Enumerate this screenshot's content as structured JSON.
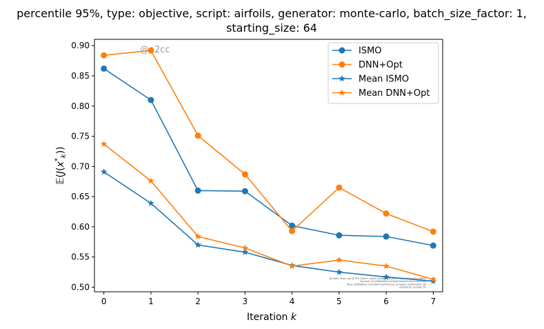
{
  "chart_data": {
    "type": "line",
    "title_line1": "percentile 95%, type: objective, script: airfoils, generator: monte-carlo, batch_size_factor: 1,",
    "title_line2": "starting_size: 64",
    "xlabel": "Iteration k",
    "ylabel": "𝔼(J(x*k))",
    "xlim": [
      -0.2,
      7.2
    ],
    "ylim": [
      0.4925,
      0.9105
    ],
    "xticks": [
      0,
      1,
      2,
      3,
      4,
      5,
      6,
      7
    ],
    "yticks": [
      0.5,
      0.55,
      0.6,
      0.65,
      0.7,
      0.75,
      0.8,
      0.85,
      0.9
    ],
    "watermark": "@a2cc",
    "footnote_lines": [
      "By Kjetil Olsen Lye @ ETH Zurich <kjetil.o.lye@gmail.com> and Siddhartha Mishra",
      "Commit: a2cc0f8d1b8f2c4e3a9d7b6e5f4a3b2c1d0e9f8a",
      "Repo: git@github.com:kjetil-lye/iterative_surrogate_optimization.git",
      "Hostname: ex-login-05"
    ],
    "legend_position": "top-right",
    "series": [
      {
        "name": "ISMO",
        "marker": "circle",
        "color": "#1f77b4",
        "x": [
          0,
          1,
          2,
          3,
          4,
          5,
          6,
          7
        ],
        "values": [
          0.862,
          0.81,
          0.66,
          0.659,
          0.602,
          0.586,
          0.584,
          0.569
        ]
      },
      {
        "name": "DNN+Opt",
        "marker": "circle",
        "color": "#ff7f0e",
        "x": [
          0,
          1,
          2,
          3,
          4,
          5,
          6,
          7
        ],
        "values": [
          0.884,
          0.892,
          0.751,
          0.687,
          0.593,
          0.665,
          0.622,
          0.592
        ]
      },
      {
        "name": "Mean ISMO",
        "marker": "star",
        "color": "#1f77b4",
        "x": [
          0,
          1,
          2,
          3,
          4,
          5,
          6,
          7
        ],
        "values": [
          0.691,
          0.639,
          0.57,
          0.558,
          0.536,
          0.525,
          0.517,
          0.51
        ]
      },
      {
        "name": "Mean DNN+Opt",
        "marker": "star",
        "color": "#ff7f0e",
        "x": [
          0,
          1,
          2,
          3,
          4,
          5,
          6,
          7
        ],
        "values": [
          0.737,
          0.676,
          0.584,
          0.565,
          0.535,
          0.545,
          0.535,
          0.513
        ]
      }
    ]
  }
}
